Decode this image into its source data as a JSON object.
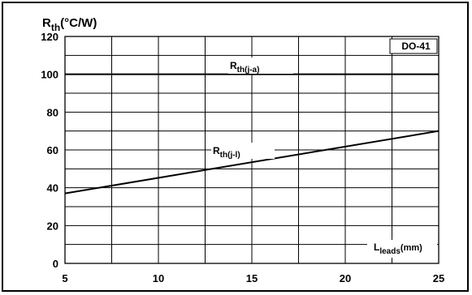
{
  "chart_data": {
    "type": "line",
    "title": "",
    "ylabel": {
      "main": "R",
      "sub": "th",
      "unit": "(°C/W)"
    },
    "xlabel": {
      "main": "L",
      "sub": "leads",
      "unit": "(mm)"
    },
    "package_label": "DO-41",
    "xlim": [
      5,
      25
    ],
    "ylim": [
      0,
      120
    ],
    "x_ticks": [
      5,
      10,
      15,
      20,
      25
    ],
    "y_ticks": [
      0,
      20,
      40,
      60,
      80,
      100,
      120
    ],
    "grid": true,
    "series": [
      {
        "name": "Rth(j-a)",
        "label_main": "R",
        "label_sub": "th(j-a)",
        "x": [
          5,
          25
        ],
        "y": [
          100,
          100
        ]
      },
      {
        "name": "Rth(j-l)",
        "label_main": "R",
        "label_sub": "th(j-l)",
        "x": [
          5,
          25
        ],
        "y": [
          37,
          70
        ]
      }
    ]
  }
}
